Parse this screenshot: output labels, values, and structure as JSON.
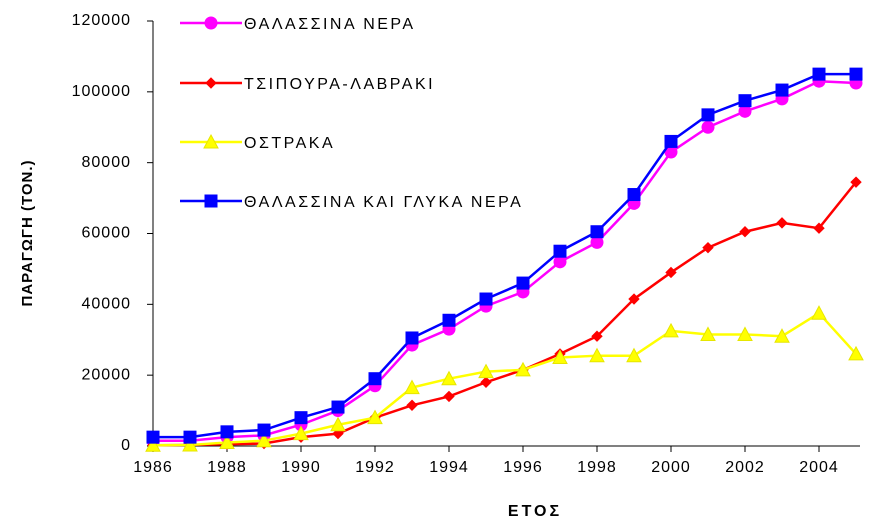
{
  "chart_data": {
    "type": "line",
    "x_label": "ΕΤΟΣ",
    "y_label": "ΠΑΡΑΓΩΓΗ (ΤΟΝ.)",
    "x": [
      1986,
      1987,
      1988,
      1989,
      1990,
      1991,
      1992,
      1993,
      1994,
      1995,
      1996,
      1997,
      1998,
      1999,
      2000,
      2001,
      2002,
      2003,
      2004,
      2005
    ],
    "series": [
      {
        "name": "ΘΑΛΑΣΣΙΝΑ ΝΕΡΑ",
        "color": "#ff00ff",
        "marker": "circle",
        "values": [
          1500,
          1500,
          2500,
          3000,
          6000,
          10000,
          17000,
          28500,
          33000,
          39500,
          43500,
          52000,
          57500,
          68500,
          83000,
          90000,
          94500,
          98000,
          103000,
          102500
        ]
      },
      {
        "name": "ΤΣΙΠΟΥΡΑ-ΛΑΒΡΑΚΙ",
        "color": "#ff0000",
        "marker": "diamond",
        "values": [
          200,
          300,
          500,
          700,
          2500,
          3500,
          8000,
          11500,
          14000,
          18000,
          21500,
          26000,
          31000,
          41500,
          49000,
          56000,
          60500,
          63000,
          61500,
          74500
        ]
      },
      {
        "name": "ΟΣΤΡΑΚΑ",
        "color": "#ffff00",
        "marker": "triangle",
        "values": [
          200,
          300,
          1000,
          1500,
          3500,
          6000,
          8000,
          16500,
          19000,
          21000,
          21500,
          25000,
          25500,
          25500,
          32500,
          31500,
          31500,
          31000,
          37500,
          26000
        ]
      },
      {
        "name": "ΘΑΛΑΣΣΙΝΑ ΚΑΙ ΓΛΥΚΑ ΝΕΡΑ",
        "color": "#0000ff",
        "marker": "square",
        "values": [
          2500,
          2500,
          4000,
          4500,
          8000,
          11000,
          19000,
          30500,
          35500,
          41500,
          46000,
          55000,
          60500,
          71000,
          86000,
          93500,
          97500,
          100500,
          105000,
          105000
        ]
      }
    ],
    "xlim": [
      1986,
      2005
    ],
    "xticks": [
      1986,
      1988,
      1990,
      1992,
      1994,
      1996,
      1998,
      2000,
      2002,
      2004
    ],
    "ylim": [
      0,
      120000
    ],
    "yticks": [
      0,
      20000,
      40000,
      60000,
      80000,
      100000,
      120000
    ],
    "legend": "upper left"
  }
}
